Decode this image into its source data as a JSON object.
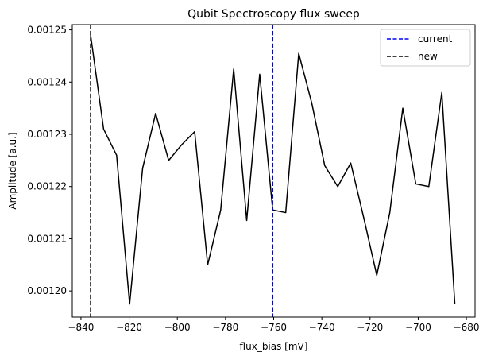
{
  "chart_data": {
    "type": "line",
    "title": "Qubit Spectroscopy flux sweep",
    "xlabel": "flux_bias [mV]",
    "ylabel": "Amplitude [a.u.]",
    "xlim": [
      -843.6,
      -676.4
    ],
    "ylim": [
      0.001195,
      0.001251
    ],
    "xticks": [
      -840,
      -820,
      -800,
      -780,
      -760,
      -740,
      -720,
      -700,
      -680
    ],
    "xtick_labels": [
      "−840",
      "−820",
      "−800",
      "−780",
      "−760",
      "−740",
      "−720",
      "−700",
      "−680"
    ],
    "yticks": [
      0.0012,
      0.00121,
      0.00122,
      0.00123,
      0.00124,
      0.00125
    ],
    "ytick_labels": [
      "0.00120",
      "0.00121",
      "0.00122",
      "0.00123",
      "0.00124",
      "0.00125"
    ],
    "grid": false,
    "legend_position": "upper right",
    "series": [
      {
        "color": "#000000",
        "x": [
          -836,
          -830.6,
          -825.2,
          -819.8,
          -814.4,
          -809,
          -803.6,
          -798.2,
          -792.8,
          -787.4,
          -782,
          -776.6,
          -771.2,
          -765.8,
          -760.4,
          -755,
          -749.6,
          -744.2,
          -738.8,
          -733.4,
          -728,
          -722.6,
          -717.2,
          -711.8,
          -706.4,
          -701,
          -695.6,
          -690.2,
          -684.8
        ],
        "values": [
          0.001249,
          0.001231,
          0.001226,
          0.0011975,
          0.0012235,
          0.001234,
          0.001225,
          0.001228,
          0.0012305,
          0.001205,
          0.0012155,
          0.0012425,
          0.0012135,
          0.0012415,
          0.0012155,
          0.001215,
          0.0012455,
          0.001236,
          0.001224,
          0.00122,
          0.0012245,
          0.001214,
          0.001203,
          0.001215,
          0.001235,
          0.0012205,
          0.00122,
          0.001238,
          0.0011975
        ]
      }
    ],
    "vlines": [
      {
        "name": "current",
        "x": -760.4,
        "color": "#0000ff",
        "style": "dashed"
      },
      {
        "name": "new",
        "x": -836,
        "color": "#000000",
        "style": "dashed"
      }
    ]
  }
}
